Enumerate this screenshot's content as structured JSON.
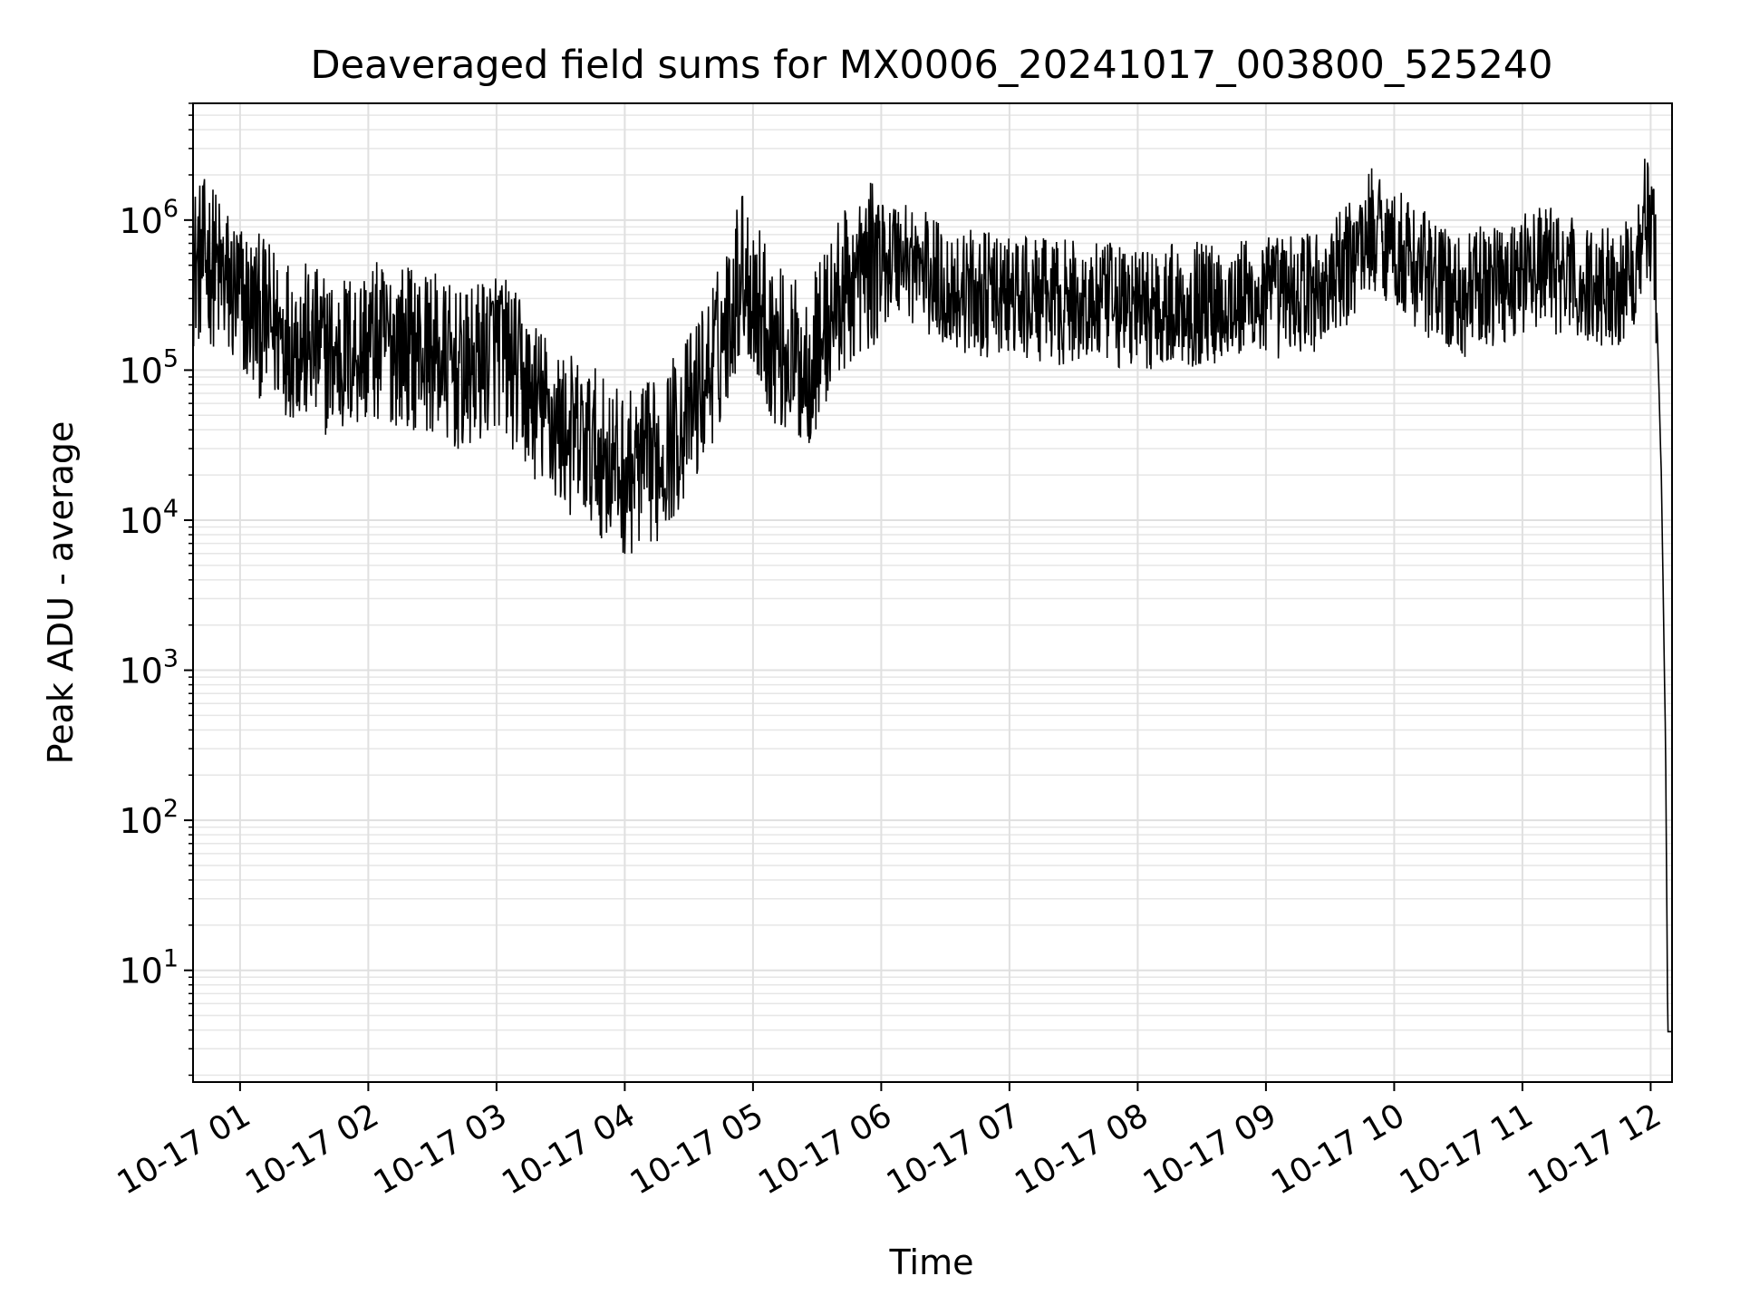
{
  "chart_data": {
    "type": "line",
    "title": "Deaveraged field sums for MX0006_20241017_003800_525240",
    "xlabel": "Time",
    "ylabel": "Peak ADU - average",
    "yscale": "log",
    "grid": true,
    "x_tick_labels": [
      "10-17 01",
      "10-17 02",
      "10-17 03",
      "10-17 04",
      "10-17 05",
      "10-17 06",
      "10-17 07",
      "10-17 08",
      "10-17 09",
      "10-17 10",
      "10-17 11",
      "10-17 12"
    ],
    "y_tick_exponents": [
      1,
      2,
      3,
      4,
      5,
      6
    ],
    "xlim": [
      "2024-10-17 00:38",
      "2024-10-17 12:10"
    ],
    "ylim": [
      1.8,
      6000000
    ],
    "series": [
      {
        "color": "#000000",
        "x": [
          "2024-10-17 00:38",
          "2024-10-17 00:45",
          "2024-10-17 00:55",
          "2024-10-17 01:05",
          "2024-10-17 01:15",
          "2024-10-17 01:30",
          "2024-10-17 01:45",
          "2024-10-17 02:00",
          "2024-10-17 02:15",
          "2024-10-17 02:30",
          "2024-10-17 02:45",
          "2024-10-17 03:00",
          "2024-10-17 03:15",
          "2024-10-17 03:30",
          "2024-10-17 03:45",
          "2024-10-17 04:00",
          "2024-10-17 04:15",
          "2024-10-17 04:30",
          "2024-10-17 04:45",
          "2024-10-17 04:55",
          "2024-10-17 05:10",
          "2024-10-17 05:25",
          "2024-10-17 05:40",
          "2024-10-17 05:55",
          "2024-10-17 06:10",
          "2024-10-17 06:30",
          "2024-10-17 07:00",
          "2024-10-17 07:30",
          "2024-10-17 08:00",
          "2024-10-17 08:30",
          "2024-10-17 09:00",
          "2024-10-17 09:30",
          "2024-10-17 09:50",
          "2024-10-17 10:10",
          "2024-10-17 10:30",
          "2024-10-17 10:50",
          "2024-10-17 11:10",
          "2024-10-17 11:30",
          "2024-10-17 11:50",
          "2024-10-17 11:58",
          "2024-10-17 12:02",
          "2024-10-17 12:05",
          "2024-10-17 12:07",
          "2024-10-17 12:08",
          "2024-10-17 12:10"
        ],
        "values": [
          500000,
          550000,
          350000,
          250000,
          200000,
          150000,
          120000,
          150000,
          150000,
          130000,
          90000,
          150000,
          70000,
          40000,
          30000,
          20000,
          25000,
          50000,
          150000,
          500000,
          150000,
          100000,
          300000,
          500000,
          600000,
          350000,
          300000,
          280000,
          260000,
          280000,
          300000,
          350000,
          900000,
          500000,
          300000,
          400000,
          500000,
          350000,
          400000,
          1100000,
          700000,
          20000,
          300,
          3.9,
          3.9
        ]
      }
    ]
  }
}
